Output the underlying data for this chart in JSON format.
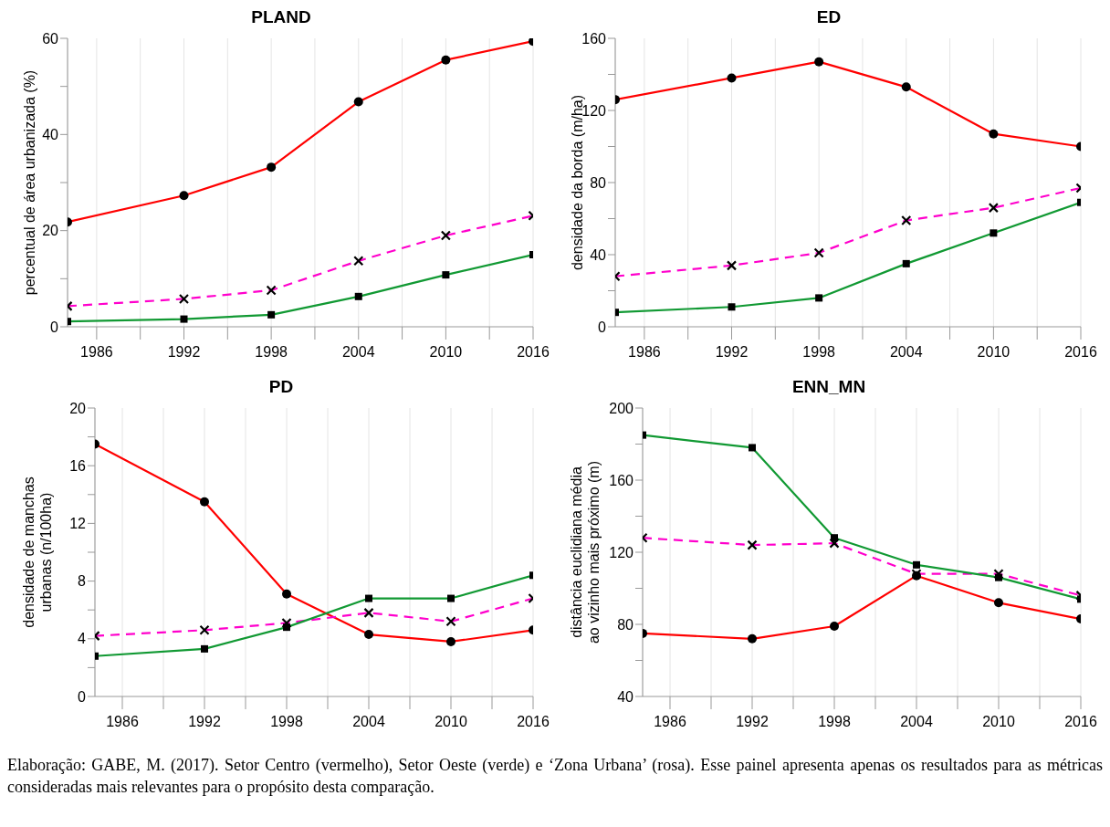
{
  "chart_data": [
    {
      "type": "line",
      "title": "PLAND",
      "ylabel": "percentual de área urbanizada (%)",
      "x": [
        1984,
        1992,
        1998,
        2004,
        2010,
        2016
      ],
      "xlim": [
        1984,
        2016
      ],
      "xticks": [
        1986,
        {
          "value": 1989,
          "label": null
        },
        1992,
        {
          "value": 1995,
          "label": null
        },
        1998,
        {
          "value": 2001,
          "label": null
        },
        2004,
        {
          "value": 2007,
          "label": null
        },
        2010,
        {
          "value": 2013,
          "label": null
        },
        2016
      ],
      "ylim": [
        0,
        60
      ],
      "yticks": [
        0,
        {
          "value": 10,
          "label": null
        },
        20,
        {
          "value": 30,
          "label": null
        },
        40,
        {
          "value": 50,
          "label": null
        },
        60
      ],
      "grid": "x",
      "legend": false,
      "series": [
        {
          "color": "#ff0000",
          "marker": "circle",
          "line_style": "solid",
          "values": [
            21.8,
            27.3,
            33.2,
            46.8,
            55.5,
            59.4
          ]
        },
        {
          "color": "#ff00cc",
          "marker": "cross",
          "line_style": "dashed",
          "values": [
            4.3,
            5.8,
            7.6,
            13.7,
            19.0,
            23.1
          ]
        },
        {
          "color": "#119933",
          "marker": "square",
          "line_style": "solid",
          "values": [
            1.1,
            1.6,
            2.5,
            6.3,
            10.8,
            15.0
          ]
        }
      ]
    },
    {
      "type": "line",
      "title": "ED",
      "ylabel": "densidade da borda (m/ha)",
      "x": [
        1984,
        1992,
        1998,
        2004,
        2010,
        2016
      ],
      "xlim": [
        1984,
        2016
      ],
      "xticks": [
        1986,
        {
          "value": 1989,
          "label": null
        },
        1992,
        {
          "value": 1995,
          "label": null
        },
        1998,
        {
          "value": 2001,
          "label": null
        },
        2004,
        {
          "value": 2007,
          "label": null
        },
        2010,
        {
          "value": 2013,
          "label": null
        },
        2016
      ],
      "ylim": [
        0,
        160
      ],
      "yticks": [
        0,
        {
          "value": 20,
          "label": null
        },
        40,
        {
          "value": 60,
          "label": null
        },
        80,
        {
          "value": 100,
          "label": null
        },
        120,
        {
          "value": 140,
          "label": null
        },
        160
      ],
      "grid": "x",
      "legend": false,
      "series": [
        {
          "color": "#ff0000",
          "marker": "circle",
          "line_style": "solid",
          "values": [
            126,
            138,
            147,
            133,
            107,
            100
          ]
        },
        {
          "color": "#ff00cc",
          "marker": "cross",
          "line_style": "dashed",
          "values": [
            28,
            34,
            41,
            59,
            66,
            77
          ]
        },
        {
          "color": "#119933",
          "marker": "square",
          "line_style": "solid",
          "values": [
            8,
            11,
            16,
            35,
            52,
            69
          ]
        }
      ]
    },
    {
      "type": "line",
      "title": "PD",
      "ylabel": "densidade de manchas\nurbanas (n/100ha)",
      "x": [
        1984,
        1992,
        1998,
        2004,
        2010,
        2016
      ],
      "xlim": [
        1984,
        2016
      ],
      "xticks": [
        1986,
        {
          "value": 1989,
          "label": null
        },
        1992,
        {
          "value": 1995,
          "label": null
        },
        1998,
        {
          "value": 2001,
          "label": null
        },
        2004,
        {
          "value": 2007,
          "label": null
        },
        2010,
        {
          "value": 2013,
          "label": null
        },
        2016
      ],
      "ylim": [
        0,
        20
      ],
      "yticks": [
        0,
        {
          "value": 2,
          "label": null
        },
        4,
        {
          "value": 6,
          "label": null
        },
        8,
        {
          "value": 10,
          "label": null
        },
        12,
        {
          "value": 14,
          "label": null
        },
        16,
        {
          "value": 18,
          "label": null
        },
        20
      ],
      "grid": "x",
      "legend": false,
      "series": [
        {
          "color": "#ff0000",
          "marker": "circle",
          "line_style": "solid",
          "values": [
            17.5,
            13.5,
            7.1,
            4.3,
            3.8,
            4.6
          ]
        },
        {
          "color": "#ff00cc",
          "marker": "cross",
          "line_style": "dashed",
          "values": [
            4.2,
            4.6,
            5.1,
            5.8,
            5.2,
            6.8
          ]
        },
        {
          "color": "#119933",
          "marker": "square",
          "line_style": "solid",
          "values": [
            2.8,
            3.3,
            4.8,
            6.8,
            6.8,
            8.4
          ]
        }
      ]
    },
    {
      "type": "line",
      "title": "ENN_MN",
      "ylabel": "distância euclidiana média\nao vizinho mais próximo (m)",
      "x": [
        1984,
        1992,
        1998,
        2004,
        2010,
        2016
      ],
      "xlim": [
        1984,
        2016
      ],
      "xticks": [
        1986,
        {
          "value": 1989,
          "label": null
        },
        1992,
        {
          "value": 1995,
          "label": null
        },
        1998,
        {
          "value": 2001,
          "label": null
        },
        2004,
        {
          "value": 2007,
          "label": null
        },
        2010,
        {
          "value": 2013,
          "label": null
        },
        2016
      ],
      "ylim": [
        40,
        200
      ],
      "yticks": [
        40,
        {
          "value": 60,
          "label": null
        },
        80,
        {
          "value": 100,
          "label": null
        },
        120,
        {
          "value": 140,
          "label": null
        },
        160,
        {
          "value": 180,
          "label": null
        },
        200
      ],
      "grid": "x",
      "legend": false,
      "annotations": [
        "Elaboração: GABE, M. (2017). Setor Centro (vermelho), Setor Oeste (verde) e ‘Zona Urbana’ (rosa). Esse painel apresenta apenas os resultados para as métricas consideradas mais relevantes para o propósito desta comparação."
      ],
      "series": [
        {
          "color": "#ff0000",
          "marker": "circle",
          "line_style": "solid",
          "values": [
            75,
            72,
            79,
            107,
            92,
            83
          ]
        },
        {
          "color": "#ff00cc",
          "marker": "cross",
          "line_style": "dashed",
          "values": [
            128,
            124,
            125,
            108,
            108,
            96
          ]
        },
        {
          "color": "#119933",
          "marker": "square",
          "line_style": "solid",
          "values": [
            185,
            178,
            128,
            113,
            106,
            94
          ]
        }
      ]
    }
  ]
}
